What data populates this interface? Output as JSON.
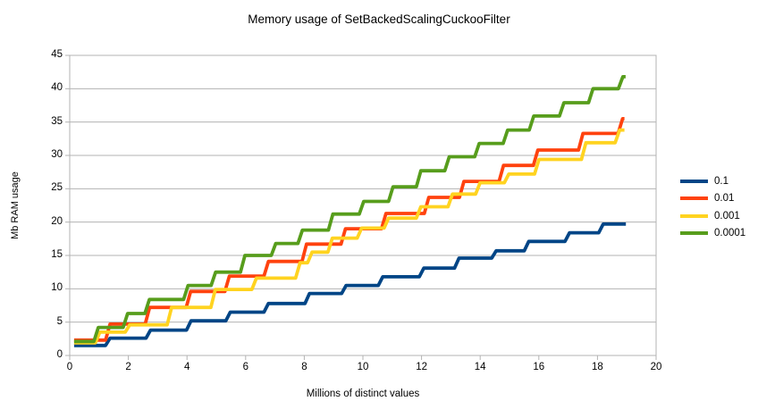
{
  "title": "Memory usage of SetBackedScalingCuckooFilter",
  "colors": {
    "background": "#ffffff",
    "axis_and_grid": "#b3b3b3",
    "text": "#000000"
  },
  "chart_data": {
    "type": "line",
    "step_style": "hold-until-next-x",
    "title": "Memory usage of SetBackedScalingCuckooFilter",
    "xlabel": "Millions of distinct values",
    "ylabel": "Mb RAM usage",
    "xlim": [
      0,
      20
    ],
    "ylim": [
      0,
      45
    ],
    "x_ticks": [
      0,
      2,
      4,
      6,
      8,
      10,
      12,
      14,
      16,
      18,
      20
    ],
    "y_ticks": [
      0,
      5,
      10,
      15,
      20,
      25,
      30,
      35,
      40,
      45
    ],
    "grid": "horizontal",
    "legend_position": "right",
    "series": [
      {
        "name": "0.1",
        "color": "#004586",
        "points": [
          [
            0.15,
            1.5
          ],
          [
            1.3,
            2.6
          ],
          [
            2.68,
            3.8
          ],
          [
            4.06,
            5.2
          ],
          [
            5.4,
            6.5
          ],
          [
            6.7,
            7.8
          ],
          [
            8.1,
            9.3
          ],
          [
            9.35,
            10.5
          ],
          [
            10.6,
            11.8
          ],
          [
            12.0,
            13.1
          ],
          [
            13.2,
            14.6
          ],
          [
            14.47,
            15.7
          ],
          [
            15.58,
            17.1
          ],
          [
            16.97,
            18.4
          ],
          [
            18.12,
            19.7
          ],
          [
            18.97,
            19.7
          ]
        ]
      },
      {
        "name": "0.01",
        "color": "#ff420e",
        "points": [
          [
            0.15,
            2.3
          ],
          [
            1.3,
            4.7
          ],
          [
            2.65,
            7.2
          ],
          [
            4.05,
            9.6
          ],
          [
            5.37,
            11.9
          ],
          [
            6.7,
            14.1
          ],
          [
            8.0,
            16.7
          ],
          [
            9.33,
            19.0
          ],
          [
            10.71,
            21.3
          ],
          [
            12.17,
            23.7
          ],
          [
            13.37,
            26.1
          ],
          [
            14.72,
            28.5
          ],
          [
            15.89,
            30.8
          ],
          [
            17.43,
            33.3
          ],
          [
            18.78,
            35.5
          ],
          [
            18.92,
            35.5
          ]
        ]
      },
      {
        "name": "0.001",
        "color": "#ffd320",
        "points": [
          [
            0.15,
            1.9
          ],
          [
            0.95,
            3.5
          ],
          [
            1.97,
            4.6
          ],
          [
            3.4,
            7.2
          ],
          [
            4.89,
            9.9
          ],
          [
            6.29,
            11.6
          ],
          [
            7.78,
            13.9
          ],
          [
            8.19,
            15.5
          ],
          [
            8.88,
            17.6
          ],
          [
            9.88,
            19.1
          ],
          [
            10.8,
            20.6
          ],
          [
            11.9,
            22.3
          ],
          [
            12.98,
            24.2
          ],
          [
            13.92,
            25.9
          ],
          [
            14.9,
            27.2
          ],
          [
            15.93,
            29.4
          ],
          [
            17.53,
            31.9
          ],
          [
            18.68,
            33.8
          ],
          [
            18.92,
            33.8
          ]
        ]
      },
      {
        "name": "0.0001",
        "color": "#579d1c",
        "points": [
          [
            0.15,
            2.1
          ],
          [
            0.9,
            4.2
          ],
          [
            1.9,
            6.3
          ],
          [
            2.64,
            8.4
          ],
          [
            3.96,
            10.5
          ],
          [
            4.9,
            12.5
          ],
          [
            5.9,
            15.0
          ],
          [
            6.95,
            16.8
          ],
          [
            7.86,
            18.8
          ],
          [
            8.9,
            21.2
          ],
          [
            9.95,
            23.1
          ],
          [
            10.95,
            25.3
          ],
          [
            11.9,
            27.7
          ],
          [
            12.87,
            29.8
          ],
          [
            13.89,
            31.8
          ],
          [
            14.86,
            33.8
          ],
          [
            15.75,
            35.9
          ],
          [
            16.78,
            37.9
          ],
          [
            17.77,
            40.0
          ],
          [
            18.79,
            41.8
          ],
          [
            18.96,
            41.8
          ]
        ]
      }
    ]
  }
}
